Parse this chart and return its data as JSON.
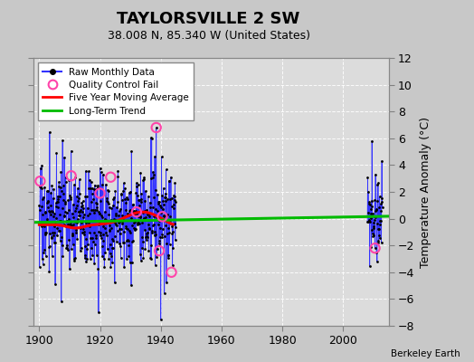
{
  "title": "TAYLORSVILLE 2 SW",
  "subtitle": "38.008 N, 85.340 W (United States)",
  "ylabel": "Temperature Anomaly (°C)",
  "credit": "Berkeley Earth",
  "xlim": [
    1898,
    2015
  ],
  "ylim": [
    -8,
    12
  ],
  "yticks": [
    -8,
    -6,
    -4,
    -2,
    0,
    2,
    4,
    6,
    8,
    10,
    12
  ],
  "xticks": [
    1900,
    1920,
    1940,
    1960,
    1980,
    2000
  ],
  "bg_color": "#c8c8c8",
  "plot_bg_color": "#dcdcdc",
  "raw_line_color": "#3333ff",
  "raw_dot_color": "#000000",
  "qc_fail_color": "#ff44aa",
  "moving_avg_color": "#ff0000",
  "trend_color": "#00bb00",
  "legend_labels": [
    "Raw Monthly Data",
    "Quality Control Fail",
    "Five Year Moving Average",
    "Long-Term Trend"
  ],
  "data_x_start": 1900.0,
  "data_x_end": 1945.0,
  "data2_x_start": 2008.0,
  "data2_x_end": 2013.0,
  "trend_x": [
    1898,
    2015
  ],
  "trend_y": [
    -0.28,
    0.18
  ],
  "seed1": 17,
  "seed2": 99,
  "title_fontsize": 13,
  "subtitle_fontsize": 9,
  "tick_fontsize": 9,
  "ylabel_fontsize": 9
}
